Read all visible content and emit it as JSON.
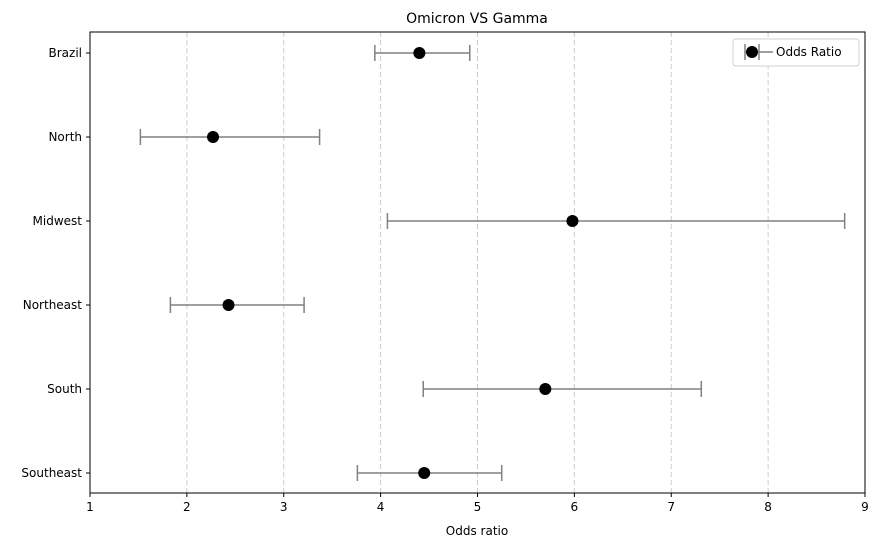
{
  "chart_data": {
    "type": "scatter",
    "title": "Omicron VS Gamma",
    "xlabel": "Odds ratio",
    "ylabel": "",
    "xlim": [
      1,
      9
    ],
    "xticks": [
      1,
      2,
      3,
      4,
      5,
      6,
      7,
      8,
      9
    ],
    "grid": "x-dashed",
    "legend": {
      "placement": "top-right",
      "label": "Odds Ratio"
    },
    "categories": [
      "Brazil",
      "North",
      "Midwest",
      "Northeast",
      "South",
      "Southeast"
    ],
    "series": [
      {
        "name": "Odds Ratio",
        "values": [
          4.4,
          2.27,
          5.98,
          2.43,
          5.7,
          4.45
        ],
        "ci_lower": [
          3.94,
          1.52,
          4.07,
          1.83,
          4.44,
          3.76
        ],
        "ci_upper": [
          4.92,
          3.37,
          8.79,
          3.21,
          7.31,
          5.25
        ]
      }
    ],
    "colors": {
      "point": "#000000",
      "errorbar": "#808080",
      "grid": "#cccccc"
    }
  }
}
